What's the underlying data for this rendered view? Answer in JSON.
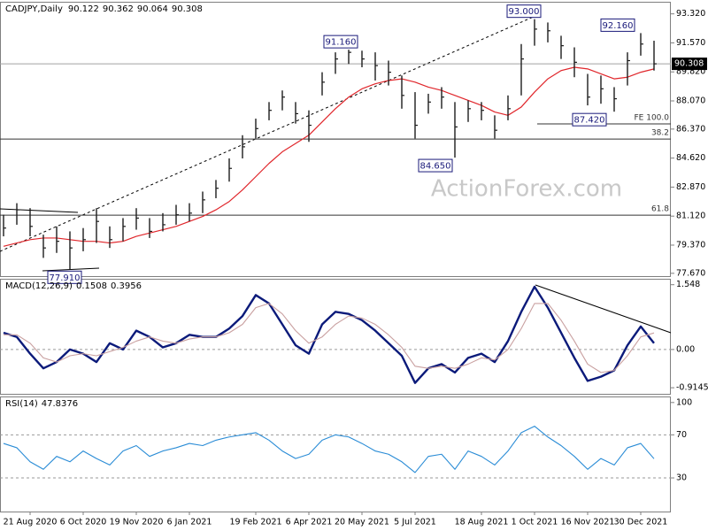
{
  "chart_data": [
    {
      "type": "ohlc",
      "title": "CADJPY,Daily",
      "ohlc": [
        90.122,
        90.362,
        90.064,
        90.308
      ],
      "watermark": "ActionForex.com",
      "categories": [
        null,
        null,
        "21 Aug 2020",
        null,
        null,
        null,
        "6 Oct 2020",
        null,
        null,
        null,
        "19 Nov 2020",
        null,
        null,
        null,
        "6 Jan 2021",
        null,
        null,
        null,
        null,
        "19 Feb 2021",
        null,
        null,
        null,
        "6 Apr 2021",
        null,
        null,
        null,
        "20 May 2021",
        null,
        null,
        null,
        "5 Jul 2021",
        null,
        null,
        null,
        null,
        "18 Aug 2021",
        null,
        null,
        null,
        "1 Oct 2021",
        null,
        null,
        null,
        "16 Nov 2021",
        null,
        null,
        null,
        "30 Dec 2021",
        null
      ],
      "high": [
        81.2,
        81.9,
        81.6,
        80.0,
        80.5,
        80.2,
        80.4,
        81.6,
        80.5,
        81.0,
        81.6,
        81.0,
        81.3,
        81.8,
        81.9,
        82.6,
        83.3,
        84.6,
        86.0,
        87.0,
        88.0,
        88.7,
        88.0,
        87.5,
        89.8,
        91.0,
        91.16,
        91.1,
        91.0,
        90.5,
        89.6,
        88.6,
        88.5,
        88.9,
        88.0,
        88.1,
        88.0,
        87.2,
        88.4,
        91.5,
        93.0,
        92.8,
        92.0,
        91.3,
        89.7,
        89.6,
        88.9,
        91.0,
        92.16,
        91.7
      ],
      "low": [
        79.9,
        80.6,
        79.9,
        78.6,
        78.9,
        77.91,
        79.0,
        79.5,
        79.2,
        79.6,
        80.3,
        79.8,
        80.2,
        80.6,
        80.8,
        81.3,
        82.2,
        83.2,
        84.6,
        85.8,
        86.9,
        87.5,
        86.7,
        85.6,
        88.4,
        89.7,
        90.3,
        90.1,
        89.3,
        89.0,
        87.6,
        85.8,
        87.3,
        87.6,
        84.65,
        86.8,
        86.9,
        85.8,
        86.9,
        88.4,
        91.4,
        91.6,
        90.6,
        89.5,
        87.8,
        87.9,
        87.42,
        89.0,
        90.8,
        89.9
      ],
      "close": [
        80.4,
        81.5,
        80.5,
        79.2,
        79.6,
        79.2,
        79.7,
        80.8,
        79.7,
        80.5,
        81.0,
        80.2,
        80.6,
        81.2,
        81.3,
        82.1,
        82.8,
        84.0,
        85.3,
        86.4,
        87.5,
        88.3,
        87.3,
        86.6,
        89.2,
        90.6,
        91.0,
        90.6,
        90.2,
        89.8,
        88.4,
        86.6,
        88.0,
        88.3,
        86.5,
        87.6,
        87.5,
        86.3,
        87.6,
        90.6,
        92.4,
        92.3,
        91.4,
        90.4,
        88.3,
        88.8,
        88.2,
        90.5,
        91.5,
        90.308
      ],
      "color": "#1c1c1c",
      "ma": {
        "color": "#e0262b",
        "values": [
          79.3,
          79.5,
          79.7,
          79.8,
          79.8,
          79.7,
          79.6,
          79.6,
          79.5,
          79.6,
          79.9,
          80.1,
          80.3,
          80.5,
          80.8,
          81.1,
          81.5,
          82.0,
          82.7,
          83.5,
          84.3,
          85.0,
          85.5,
          86.0,
          86.8,
          87.6,
          88.3,
          88.8,
          89.1,
          89.3,
          89.4,
          89.2,
          88.9,
          88.7,
          88.4,
          88.1,
          87.8,
          87.4,
          87.2,
          87.7,
          88.6,
          89.4,
          89.9,
          90.1,
          90.0,
          89.7,
          89.4,
          89.5,
          89.8,
          90.0
        ]
      },
      "last_price": {
        "value": 90.308,
        "label": "90.308"
      },
      "annotations": [
        {
          "value": 93.0,
          "label": "93.000"
        },
        {
          "value": 91.16,
          "label": "91.160"
        },
        {
          "value": 92.16,
          "label": "92.160"
        },
        {
          "value": 84.65,
          "label": "84.650"
        },
        {
          "value": 87.42,
          "label": "87.420"
        },
        {
          "value": 77.91,
          "label": "77.910"
        }
      ],
      "levels": [
        {
          "value": 86.68,
          "label": "FE 100.0"
        },
        {
          "value": 85.77,
          "label": "38.2"
        },
        {
          "value": 81.18,
          "label": "61.8"
        }
      ],
      "ylim": [
        77.5,
        94.05
      ],
      "yticks": [
        {
          "value": 93.32,
          "label": "93.320"
        },
        {
          "value": 91.57,
          "label": "91.570"
        },
        {
          "value": 89.82,
          "label": "89.820"
        },
        {
          "value": 88.07,
          "label": "88.070"
        },
        {
          "value": 86.37,
          "label": "86.370"
        },
        {
          "value": 84.62,
          "label": "84.620"
        },
        {
          "value": 82.87,
          "label": "82.870"
        },
        {
          "value": 81.12,
          "label": "81.120"
        },
        {
          "value": 79.37,
          "label": "79.370"
        },
        {
          "value": 77.67,
          "label": "77.670"
        }
      ]
    },
    {
      "type": "line",
      "title": "MACD(12,26,9)",
      "readings": [
        0.1508,
        0.3956
      ],
      "series": [
        {
          "color": "#0b1a7a",
          "values": [
            0.4,
            0.3,
            -0.1,
            -0.45,
            -0.3,
            0.0,
            -0.1,
            -0.3,
            0.15,
            0.0,
            0.45,
            0.3,
            0.05,
            0.15,
            0.35,
            0.3,
            0.3,
            0.5,
            0.8,
            1.3,
            1.1,
            0.6,
            0.1,
            -0.1,
            0.6,
            0.9,
            0.85,
            0.7,
            0.45,
            0.15,
            -0.15,
            -0.8,
            -0.45,
            -0.35,
            -0.55,
            -0.2,
            -0.1,
            -0.3,
            0.2,
            0.9,
            1.5,
            1.0,
            0.4,
            -0.2,
            -0.75,
            -0.65,
            -0.5,
            0.1,
            0.55,
            0.1508
          ]
        },
        {
          "color": "#c9a0a0",
          "values": [
            0.35,
            0.35,
            0.15,
            -0.2,
            -0.3,
            -0.15,
            -0.1,
            -0.15,
            -0.05,
            0.05,
            0.2,
            0.3,
            0.2,
            0.15,
            0.25,
            0.3,
            0.3,
            0.4,
            0.6,
            1.0,
            1.1,
            0.85,
            0.45,
            0.15,
            0.3,
            0.6,
            0.8,
            0.75,
            0.6,
            0.35,
            0.05,
            -0.4,
            -0.45,
            -0.4,
            -0.45,
            -0.35,
            -0.2,
            -0.25,
            0.0,
            0.5,
            1.1,
            1.1,
            0.7,
            0.2,
            -0.35,
            -0.55,
            -0.5,
            -0.15,
            0.3,
            0.3956
          ]
        }
      ],
      "ylim": [
        -1.06,
        1.69
      ],
      "yticks": [
        1.548,
        {
          "value": 0,
          "label": "0.00"
        },
        -0.9145
      ]
    },
    {
      "type": "line",
      "title": "RSI(14)",
      "readings": [
        47.8376
      ],
      "series": [
        {
          "color": "#2a8cd6",
          "values": [
            62,
            58,
            45,
            38,
            50,
            45,
            55,
            48,
            42,
            55,
            60,
            50,
            55,
            58,
            62,
            60,
            65,
            68,
            70,
            72,
            65,
            55,
            48,
            52,
            65,
            70,
            68,
            62,
            55,
            52,
            45,
            35,
            50,
            52,
            38,
            55,
            50,
            42,
            55,
            72,
            78,
            68,
            60,
            50,
            38,
            48,
            42,
            58,
            62,
            47.8376
          ]
        }
      ],
      "ylim": [
        -1.2,
        105.6
      ],
      "yticks": [
        100,
        70,
        30
      ]
    }
  ]
}
